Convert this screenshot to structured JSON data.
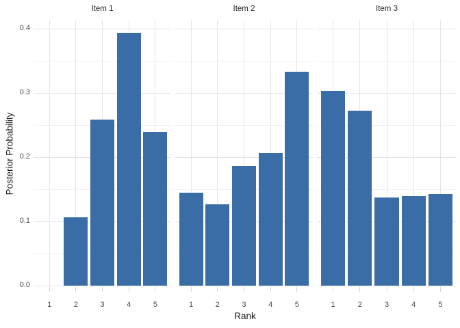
{
  "chart_data": {
    "type": "bar",
    "title": "",
    "xlabel": "Rank",
    "ylabel": "Posterior Probability",
    "categories": [
      "1",
      "2",
      "3",
      "4",
      "5"
    ],
    "facets": [
      {
        "label": "Item 1",
        "values": [
          0,
          0.106,
          0.259,
          0.394,
          0.24
        ]
      },
      {
        "label": "Item 2",
        "values": [
          0.145,
          0.127,
          0.186,
          0.207,
          0.333
        ]
      },
      {
        "label": "Item 3",
        "values": [
          0.304,
          0.273,
          0.137,
          0.14,
          0.143
        ]
      }
    ],
    "y_ticks": [
      0.0,
      0.1,
      0.2,
      0.3,
      0.4
    ],
    "y_tick_labels": [
      "0.0",
      "0.1",
      "0.2",
      "0.3",
      "0.4"
    ],
    "y_minor_ticks": [
      0.05,
      0.15,
      0.25,
      0.35
    ],
    "ylim": [
      0,
      0.415
    ],
    "grid": true,
    "legend": "none",
    "colors": {
      "bar": "#3a6da6",
      "grid_major": "#e4e4e4",
      "grid_minor": "#f0f0f0",
      "axis_tick": "#d4d4d4",
      "tick_text": "#4d4d4d",
      "title_text": "#1a1a1a",
      "background": "#ffffff"
    }
  }
}
